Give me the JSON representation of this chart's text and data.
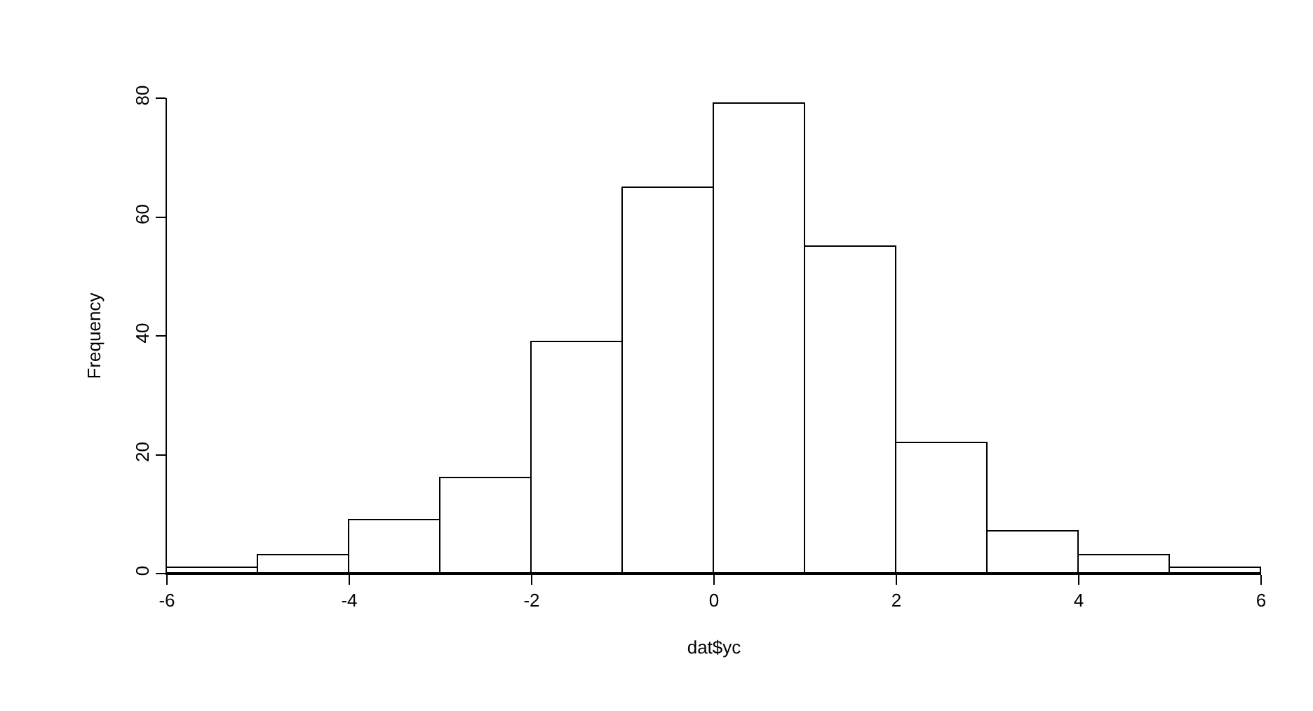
{
  "chart_data": {
    "type": "histogram",
    "xlabel": "dat$yc",
    "ylabel": "Frequency",
    "bins": [
      -6,
      -5,
      -4,
      -3,
      -2,
      -1,
      0,
      1,
      2,
      3,
      4,
      5,
      6
    ],
    "values": [
      1,
      3,
      9,
      16,
      39,
      65,
      79,
      55,
      22,
      7,
      3,
      1
    ],
    "color": "#ffffff",
    "xlim": [
      -6,
      6
    ],
    "ylim": [
      0,
      80
    ],
    "xticks": [
      -6,
      -4,
      -2,
      0,
      2,
      4,
      6
    ],
    "yticks": [
      0,
      20,
      40,
      60,
      80
    ],
    "grid": false,
    "legend": false
  }
}
